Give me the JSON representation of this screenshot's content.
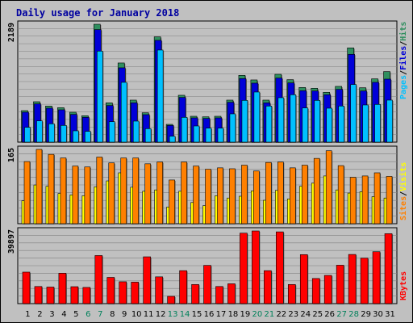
{
  "chart_data": {
    "type": "bar",
    "title": "Daily usage for January 2018",
    "categories": [
      "1",
      "2",
      "3",
      "4",
      "5",
      "6",
      "7",
      "8",
      "9",
      "10",
      "11",
      "12",
      "13",
      "14",
      "15",
      "16",
      "17",
      "18",
      "19",
      "20",
      "21",
      "22",
      "23",
      "24",
      "25",
      "26",
      "27",
      "28",
      "29",
      "30",
      "31"
    ],
    "weekend_days": [
      6,
      7,
      13,
      14,
      20,
      21,
      27,
      28
    ],
    "colors": {
      "hits": "#2f8f5f",
      "files": "#0000d8",
      "pages": "#00c0ff",
      "visits": "#ffff00",
      "sites": "#ff8000",
      "kbytes": "#ff0000",
      "title": "#0000a0",
      "weekend_label": "#00805a",
      "weekday_label": "#000000"
    },
    "panels": [
      {
        "id": "hits-files-pages",
        "ymax_label": "2189",
        "ymax": 2189,
        "legend": [
          {
            "key": "pages",
            "label": "Pages"
          },
          {
            "key": "sep1",
            "label": "/"
          },
          {
            "key": "files",
            "label": "Files"
          },
          {
            "key": "sep2",
            "label": "/"
          },
          {
            "key": "hits",
            "label": "Hits"
          }
        ],
        "series": [
          {
            "name": "Hits",
            "values": [
              585,
              750,
              670,
              640,
              555,
              490,
              2189,
              730,
              1470,
              780,
              545,
              1955,
              330,
              870,
              480,
              470,
              480,
              780,
              1240,
              1155,
              780,
              1260,
              1160,
              1015,
              1000,
              925,
              1035,
              1750,
              1010,
              1175,
              1310
            ]
          },
          {
            "name": "Files",
            "values": [
              555,
              710,
              630,
              600,
              515,
              460,
              2090,
              680,
              1380,
              730,
              510,
              1890,
              310,
              830,
              450,
              440,
              450,
              740,
              1180,
              1095,
              730,
              1190,
              1100,
              955,
              950,
              880,
              980,
              1630,
              950,
              1110,
              1170
            ]
          },
          {
            "name": "Pages",
            "values": [
              275,
              395,
              340,
              310,
              210,
              200,
              1690,
              380,
              1110,
              390,
              250,
              1710,
              110,
              460,
              300,
              260,
              260,
              525,
              775,
              930,
              670,
              825,
              880,
              635,
              775,
              630,
              670,
              1070,
              690,
              700,
              780
            ]
          }
        ]
      },
      {
        "id": "sites-visits",
        "ymax_label": "165",
        "ymax": 165,
        "legend": [
          {
            "key": "sites",
            "label": "Sites"
          },
          {
            "key": "sep1",
            "label": "/"
          },
          {
            "key": "visits",
            "label": "Visits"
          }
        ],
        "series": [
          {
            "name": "Sites",
            "values": [
              138,
              165,
              154,
              146,
              128,
              126,
              148,
              135,
              146,
              146,
              133,
              137,
              97,
              137,
              128,
              121,
              124,
              122,
              130,
              117,
              136,
              137,
              124,
              130,
              145,
              162,
              129,
              103,
              106,
              113,
              105
            ]
          },
          {
            "name": "Visits",
            "values": [
              51,
              86,
              83,
              67,
              64,
              62,
              82,
              95,
              113,
              81,
              72,
              75,
              37,
              72,
              47,
              40,
              62,
              57,
              61,
              73,
              52,
              74,
              55,
              83,
              90,
              106,
              75,
              68,
              71,
              60,
              57
            ]
          }
        ]
      },
      {
        "id": "kbytes",
        "ymax_label": "39897",
        "ymax": 39897,
        "legend": [
          {
            "key": "kbytes",
            "label": "KBytes"
          }
        ],
        "series": [
          {
            "name": "KBytes",
            "values": [
              17300,
              9400,
              9100,
              16700,
              9300,
              8900,
              26400,
              14400,
              12000,
              11800,
              25700,
              14700,
              4000,
              18100,
              10500,
              21000,
              9400,
              10900,
              38700,
              39897,
              18100,
              39400,
              10500,
              26900,
              13800,
              15500,
              21100,
              27000,
              25000,
              28500,
              38400
            ]
          }
        ]
      }
    ]
  }
}
